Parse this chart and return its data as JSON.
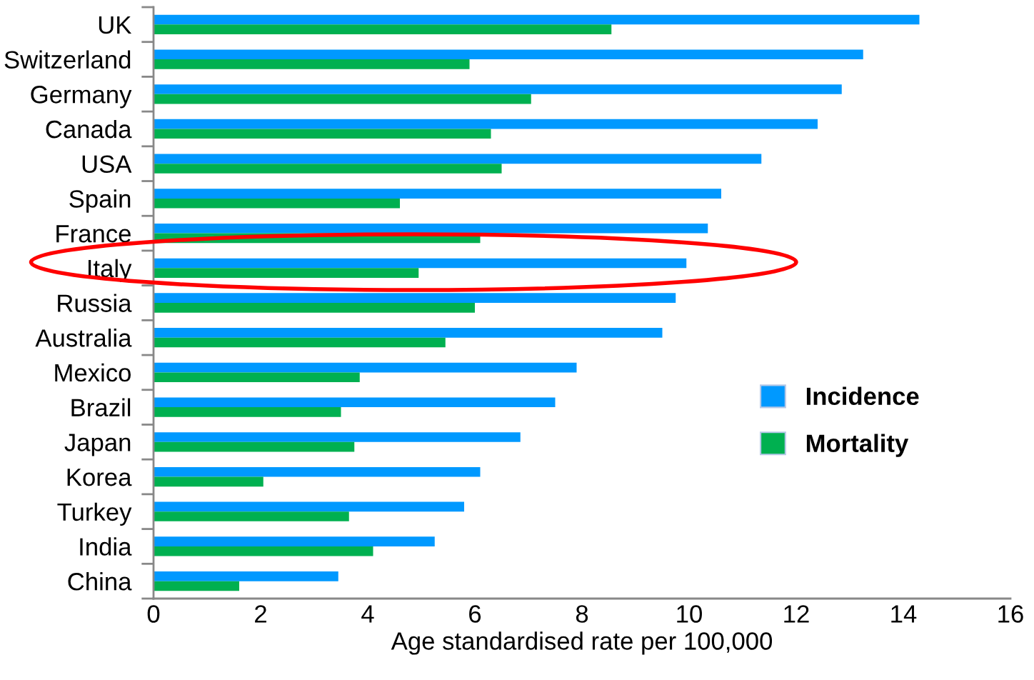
{
  "chart_data": {
    "type": "bar",
    "orientation": "horizontal",
    "xlabel": "Age standardised rate per 100,000",
    "categories": [
      "UK",
      "Switzerland",
      "Germany",
      "Canada",
      "USA",
      "Spain",
      "France",
      "Italy",
      "Russia",
      "Australia",
      "Mexico",
      "Brazil",
      "Japan",
      "Korea",
      "Turkey",
      "India",
      "China"
    ],
    "series": [
      {
        "name": "Incidence",
        "color": "#0099ff",
        "values": [
          14.3,
          13.25,
          12.85,
          12.4,
          11.35,
          10.6,
          10.35,
          9.95,
          9.75,
          9.5,
          7.9,
          7.5,
          6.85,
          6.1,
          5.8,
          5.25,
          3.45
        ]
      },
      {
        "name": "Mortality",
        "color": "#00b050",
        "values": [
          8.55,
          5.9,
          7.05,
          6.3,
          6.5,
          4.6,
          6.1,
          4.95,
          6.0,
          5.45,
          3.85,
          3.5,
          3.75,
          2.05,
          3.65,
          4.1,
          1.6
        ]
      }
    ],
    "xlim": [
      0,
      16
    ],
    "xticks": [
      0,
      2,
      4,
      6,
      8,
      10,
      12,
      14,
      16
    ],
    "grid": false,
    "legend": "right"
  }
}
